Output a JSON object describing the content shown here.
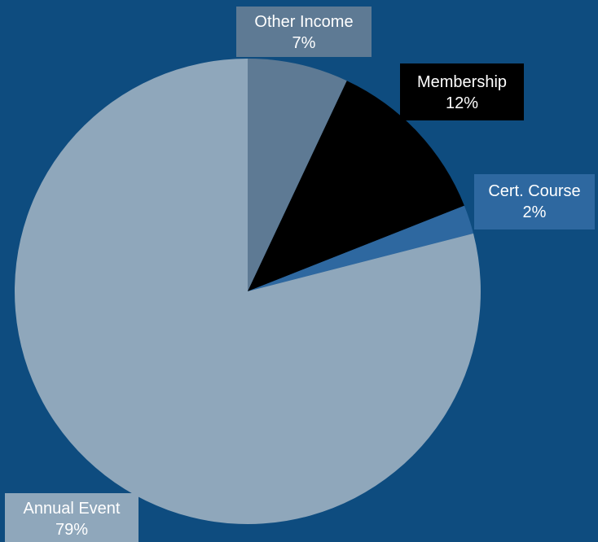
{
  "chart_data": {
    "type": "pie",
    "title": "",
    "start_angle_deg": 0,
    "direction": "clockwise",
    "slices": [
      {
        "label": "Other Income",
        "value": 7,
        "value_label": "7%",
        "color": "#5e7a94"
      },
      {
        "label": "Membership",
        "value": 12,
        "value_label": "12%",
        "color": "#000000"
      },
      {
        "label": "Cert. Course",
        "value": 2,
        "value_label": "2%",
        "color": "#2e68a0"
      },
      {
        "label": "Annual Event",
        "value": 79,
        "value_label": "79%",
        "color": "#8fa7bb"
      }
    ],
    "background_color": "#0e4c7f"
  }
}
